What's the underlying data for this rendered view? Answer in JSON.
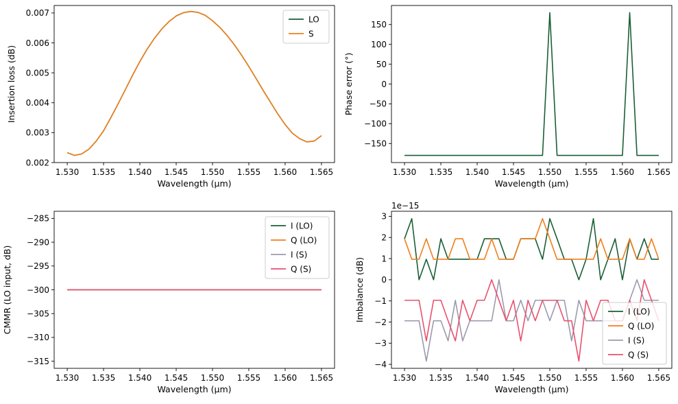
{
  "chart_data": [
    {
      "type": "line",
      "xlabel": "Wavelength (µm)",
      "ylabel": "Insertion loss (dB)",
      "xlim": [
        1.5282,
        1.5668
      ],
      "ylim": [
        0.002,
        0.00725
      ],
      "xticks": [
        1.53,
        1.535,
        1.54,
        1.545,
        1.55,
        1.555,
        1.56,
        1.565
      ],
      "xtick_labels": [
        "1.530",
        "1.535",
        "1.540",
        "1.545",
        "1.550",
        "1.555",
        "1.560",
        "1.565"
      ],
      "yticks": [
        0.002,
        0.003,
        0.004,
        0.005,
        0.006,
        0.007
      ],
      "ytick_labels": [
        "0.002",
        "0.003",
        "0.004",
        "0.005",
        "0.006",
        "0.007"
      ],
      "legend": "top-right",
      "grid": false,
      "series": [
        {
          "name": "LO",
          "color": "#1a5e35",
          "x": [
            1.53,
            1.531,
            1.532,
            1.533,
            1.534,
            1.535,
            1.536,
            1.537,
            1.538,
            1.539,
            1.54,
            1.541,
            1.542,
            1.543,
            1.544,
            1.545,
            1.546,
            1.547,
            1.548,
            1.549,
            1.55,
            1.551,
            1.552,
            1.553,
            1.554,
            1.555,
            1.556,
            1.557,
            1.558,
            1.559,
            1.56,
            1.561,
            1.562,
            1.563,
            1.564,
            1.565
          ],
          "y": [
            0.00233,
            0.00224,
            0.00229,
            0.00245,
            0.00272,
            0.00306,
            0.0035,
            0.00396,
            0.00444,
            0.00492,
            0.00538,
            0.00579,
            0.00615,
            0.00646,
            0.00671,
            0.0069,
            0.00701,
            0.00705,
            0.00702,
            0.00692,
            0.00674,
            0.00652,
            0.00625,
            0.00594,
            0.00559,
            0.00521,
            0.00481,
            0.0044,
            0.00401,
            0.00362,
            0.00327,
            0.00298,
            0.0028,
            0.00269,
            0.00272,
            0.0029
          ]
        },
        {
          "name": "S",
          "color": "#f07f1a",
          "x": [
            1.53,
            1.531,
            1.532,
            1.533,
            1.534,
            1.535,
            1.536,
            1.537,
            1.538,
            1.539,
            1.54,
            1.541,
            1.542,
            1.543,
            1.544,
            1.545,
            1.546,
            1.547,
            1.548,
            1.549,
            1.55,
            1.551,
            1.552,
            1.553,
            1.554,
            1.555,
            1.556,
            1.557,
            1.558,
            1.559,
            1.56,
            1.561,
            1.562,
            1.563,
            1.564,
            1.565
          ],
          "y": [
            0.00233,
            0.00224,
            0.00229,
            0.00245,
            0.00272,
            0.00306,
            0.0035,
            0.00396,
            0.00444,
            0.00492,
            0.00538,
            0.00579,
            0.00615,
            0.00646,
            0.00671,
            0.0069,
            0.00701,
            0.00705,
            0.00702,
            0.00692,
            0.00674,
            0.00652,
            0.00625,
            0.00594,
            0.00559,
            0.00521,
            0.00481,
            0.0044,
            0.00401,
            0.00362,
            0.00327,
            0.00298,
            0.0028,
            0.00269,
            0.00272,
            0.0029
          ]
        }
      ]
    },
    {
      "type": "line",
      "xlabel": "Wavelength (µm)",
      "ylabel": "Phase error (°)",
      "xlim": [
        1.5282,
        1.5668
      ],
      "ylim": [
        -198,
        198
      ],
      "xticks": [
        1.53,
        1.535,
        1.54,
        1.545,
        1.55,
        1.555,
        1.56,
        1.565
      ],
      "xtick_labels": [
        "1.530",
        "1.535",
        "1.540",
        "1.545",
        "1.550",
        "1.555",
        "1.560",
        "1.565"
      ],
      "yticks": [
        -150,
        -100,
        -50,
        0,
        50,
        100,
        150
      ],
      "ytick_labels": [
        "−150",
        "−100",
        "−50",
        "0",
        "50",
        "100",
        "150"
      ],
      "grid": false,
      "series": [
        {
          "color": "#1a5e35",
          "x": [
            1.53,
            1.549,
            1.55,
            1.551,
            1.56,
            1.561,
            1.562,
            1.565
          ],
          "y": [
            -180,
            -180,
            180,
            -180,
            -180,
            180,
            -180,
            -180
          ]
        }
      ]
    },
    {
      "type": "line",
      "xlabel": "Wavelength (µm)",
      "ylabel": "CMMR (LO input, dB)",
      "xlim": [
        1.5282,
        1.5668
      ],
      "ylim": [
        -316.5,
        -283.5
      ],
      "xticks": [
        1.53,
        1.535,
        1.54,
        1.545,
        1.55,
        1.555,
        1.56,
        1.565
      ],
      "xtick_labels": [
        "1.530",
        "1.535",
        "1.540",
        "1.545",
        "1.550",
        "1.555",
        "1.560",
        "1.565"
      ],
      "yticks": [
        -315,
        -310,
        -305,
        -300,
        -295,
        -290,
        -285
      ],
      "ytick_labels": [
        "−315",
        "−310",
        "−305",
        "−300",
        "−295",
        "−290",
        "−285"
      ],
      "legend": "top-right",
      "grid": false,
      "series": [
        {
          "name": "I (LO)",
          "color": "#1a5e35",
          "x": [
            1.53,
            1.565
          ],
          "y": [
            -300,
            -300
          ]
        },
        {
          "name": "Q (LO)",
          "color": "#f07f1a",
          "x": [
            1.53,
            1.565
          ],
          "y": [
            -300,
            -300
          ]
        },
        {
          "name": "I (S)",
          "color": "#9b9aad",
          "x": [
            1.53,
            1.565
          ],
          "y": [
            -300,
            -300
          ]
        },
        {
          "name": "Q (S)",
          "color": "#e8506e",
          "x": [
            1.53,
            1.565
          ],
          "y": [
            -300,
            -300
          ]
        }
      ]
    },
    {
      "type": "line",
      "xlabel": "Wavelength (µm)",
      "ylabel": "Imbalance (dB)",
      "offset_label": "1e−15",
      "xlim": [
        1.5282,
        1.5668
      ],
      "ylim": [
        -4.19,
        3.24
      ],
      "xticks": [
        1.53,
        1.535,
        1.54,
        1.545,
        1.55,
        1.555,
        1.56,
        1.565
      ],
      "xtick_labels": [
        "1.530",
        "1.535",
        "1.540",
        "1.545",
        "1.550",
        "1.555",
        "1.560",
        "1.565"
      ],
      "yticks": [
        -4,
        -3,
        -2,
        -1,
        0,
        1,
        2,
        3
      ],
      "ytick_labels": [
        "−4",
        "−3",
        "−2",
        "−1",
        "0",
        "1",
        "2",
        "3"
      ],
      "legend": "lower-right",
      "grid": false,
      "series": [
        {
          "name": "I (LO)",
          "color": "#1a5e35",
          "x": [
            1.53,
            1.531,
            1.532,
            1.533,
            1.534,
            1.535,
            1.536,
            1.537,
            1.538,
            1.539,
            1.54,
            1.541,
            1.542,
            1.543,
            1.544,
            1.545,
            1.546,
            1.547,
            1.548,
            1.549,
            1.55,
            1.551,
            1.552,
            1.553,
            1.554,
            1.555,
            1.556,
            1.557,
            1.558,
            1.559,
            1.56,
            1.561,
            1.562,
            1.563,
            1.564,
            1.565
          ],
          "y": [
            1.94,
            2.89,
            0.0,
            0.97,
            0.0,
            1.94,
            0.97,
            0.97,
            0.97,
            0.97,
            0.97,
            1.94,
            1.94,
            1.94,
            0.97,
            0.97,
            1.94,
            1.94,
            1.94,
            0.97,
            2.89,
            1.94,
            0.97,
            0.97,
            0.0,
            0.97,
            2.89,
            0.0,
            0.97,
            1.94,
            0.0,
            1.94,
            0.97,
            1.94,
            0.97,
            0.97
          ]
        },
        {
          "name": "Q (LO)",
          "color": "#f07f1a",
          "x": [
            1.53,
            1.531,
            1.532,
            1.533,
            1.534,
            1.535,
            1.536,
            1.537,
            1.538,
            1.539,
            1.54,
            1.541,
            1.542,
            1.543,
            1.544,
            1.545,
            1.546,
            1.547,
            1.548,
            1.549,
            1.55,
            1.551,
            1.552,
            1.553,
            1.554,
            1.555,
            1.556,
            1.557,
            1.558,
            1.559,
            1.56,
            1.561,
            1.562,
            1.563,
            1.564,
            1.565
          ],
          "y": [
            1.94,
            0.97,
            0.97,
            1.94,
            0.97,
            0.97,
            0.97,
            1.94,
            1.94,
            0.97,
            0.97,
            0.97,
            1.94,
            0.97,
            0.97,
            0.97,
            1.94,
            1.94,
            1.94,
            2.89,
            1.94,
            0.97,
            0.97,
            0.97,
            0.97,
            0.97,
            0.97,
            1.94,
            0.97,
            0.97,
            0.97,
            1.94,
            0.97,
            0.97,
            1.94,
            0.97
          ]
        },
        {
          "name": "I (S)",
          "color": "#9b9aad",
          "x": [
            1.53,
            1.531,
            1.532,
            1.533,
            1.534,
            1.535,
            1.536,
            1.537,
            1.538,
            1.539,
            1.54,
            1.541,
            1.542,
            1.543,
            1.544,
            1.545,
            1.546,
            1.547,
            1.548,
            1.549,
            1.55,
            1.551,
            1.552,
            1.553,
            1.554,
            1.555,
            1.556,
            1.557,
            1.558,
            1.559,
            1.56,
            1.561,
            1.562,
            1.563,
            1.564,
            1.565
          ],
          "y": [
            -1.94,
            -1.94,
            -1.94,
            -3.85,
            -1.94,
            -1.94,
            -2.89,
            -0.97,
            -2.89,
            -1.94,
            -1.94,
            -1.94,
            -1.94,
            0.0,
            -1.94,
            -1.94,
            -0.97,
            -1.94,
            -0.97,
            -0.97,
            -1.94,
            -0.97,
            -0.97,
            -2.89,
            -0.97,
            -1.94,
            -1.94,
            -1.94,
            -1.94,
            -1.94,
            -1.94,
            -0.97,
            0.0,
            -0.97,
            -0.97,
            -0.97
          ]
        },
        {
          "name": "Q (S)",
          "color": "#e8506e",
          "x": [
            1.53,
            1.531,
            1.532,
            1.533,
            1.534,
            1.535,
            1.536,
            1.537,
            1.538,
            1.539,
            1.54,
            1.541,
            1.542,
            1.543,
            1.544,
            1.545,
            1.546,
            1.547,
            1.548,
            1.549,
            1.55,
            1.551,
            1.552,
            1.553,
            1.554,
            1.555,
            1.556,
            1.557,
            1.558,
            1.559,
            1.56,
            1.561,
            1.562,
            1.563,
            1.564,
            1.565
          ],
          "y": [
            -0.97,
            -0.97,
            -0.97,
            -2.89,
            -0.97,
            -0.97,
            -1.94,
            -2.89,
            -0.97,
            -1.94,
            -0.97,
            -0.97,
            0.0,
            -0.97,
            -1.94,
            -0.97,
            -2.89,
            -0.97,
            -1.94,
            -0.97,
            -0.97,
            -0.97,
            -1.94,
            -1.94,
            -3.85,
            -0.97,
            -1.94,
            -0.97,
            -0.97,
            -1.94,
            -1.94,
            -0.97,
            -1.94,
            0.0,
            -0.97,
            -1.94
          ]
        }
      ]
    }
  ]
}
